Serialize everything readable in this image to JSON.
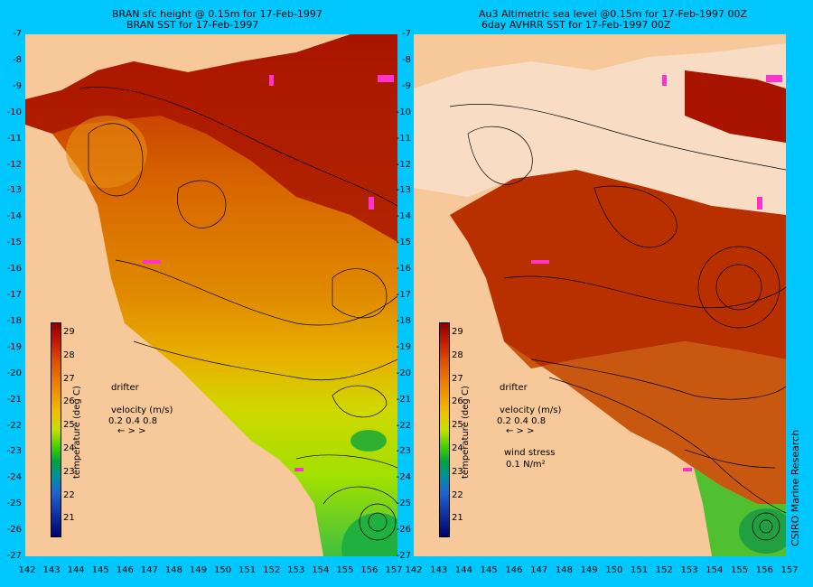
{
  "left_panel": {
    "title_line1": "BRAN sfc height @ 0.15m for 17-Feb-1997",
    "title_line2": "BRAN SST for 17-Feb-1997",
    "colorbar_label": "temperature (deg C)",
    "drifter_label": "drifter",
    "velocity_label": "velocity (m/s)",
    "velocity_values": "0.2 0.4 0.8",
    "velocity_arrows": "←  >  >"
  },
  "right_panel": {
    "title_line1": "Au3 Altimetric sea level  @0.15m  for 17-Feb-1997 00Z",
    "title_line2": "6day AVHRR SST for 17-Feb-1997 00Z",
    "colorbar_label": "temperature (deg C)",
    "drifter_label": "drifter",
    "velocity_label": "velocity (m/s)",
    "velocity_values": "0.2 0.4 0.8",
    "velocity_arrows": "←  >  >",
    "wind_label": "wind stress",
    "wind_value": "0.1 N/m²"
  },
  "colorbar_ticks": [
    "29",
    "28",
    "27",
    "26",
    "25",
    "24",
    "23",
    "22",
    "21"
  ],
  "y_ticks": [
    "-7",
    "-8",
    "-9",
    "-10",
    "-11",
    "-12",
    "-13",
    "-14",
    "-15",
    "-16",
    "-17",
    "-18",
    "-19",
    "-20",
    "-21",
    "-22",
    "-23",
    "-24",
    "-25",
    "-26",
    "-27"
  ],
  "x_ticks": [
    "142",
    "143",
    "144",
    "145",
    "146",
    "147",
    "148",
    "149",
    "150",
    "151",
    "152",
    "153",
    "154",
    "155",
    "156",
    "157"
  ],
  "credit": "CSIRO Marine Research",
  "colors": {
    "background": "#00c8ff",
    "land": "#f6c89a",
    "drifter": "#ff33cc"
  }
}
